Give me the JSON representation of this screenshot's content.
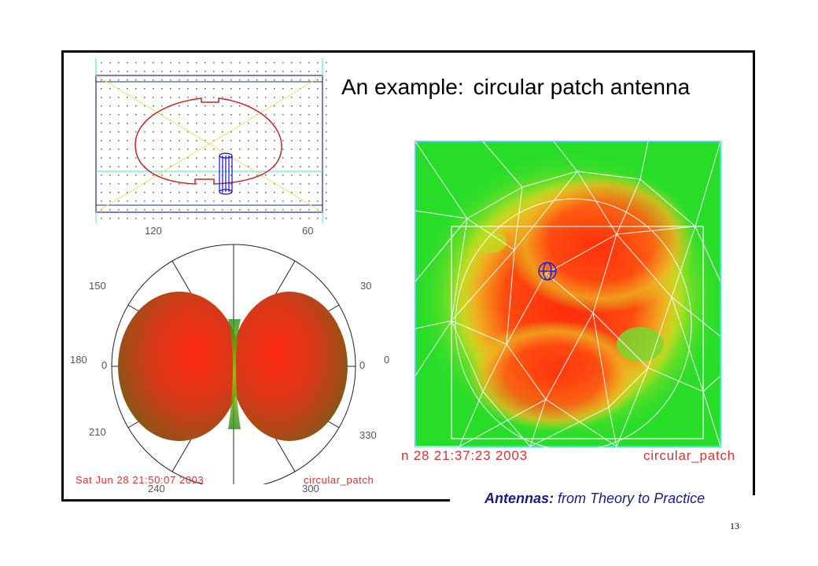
{
  "slide": {
    "title_part1": "An example:",
    "title_part2": "circular patch antenna",
    "footer_brand_bold": "Antennas:",
    "footer_brand_rest": "from Theory to Practice",
    "page_number": "13"
  },
  "geometry_view": {
    "colors": {
      "patch": "#d42020",
      "feed": "#1010c8",
      "border": "#1a2aa0",
      "diagonal": "#f0e060",
      "line": "#40e0e0"
    }
  },
  "radiation_pattern": {
    "angle_labels": [
      "120",
      "60",
      "150",
      "30",
      "180",
      "0",
      "0",
      "0",
      "210",
      "330",
      "240",
      "300"
    ],
    "timestamp": "Sat Jun 28 21:50:07 2003",
    "model_name": "circular_patch"
  },
  "current_distribution": {
    "timestamp": "n 28 21:37:23 2003",
    "model_name": "circular_patch",
    "colors": {
      "low": "#22dd22",
      "mid": "#e8e020",
      "high": "#ff3010"
    }
  }
}
